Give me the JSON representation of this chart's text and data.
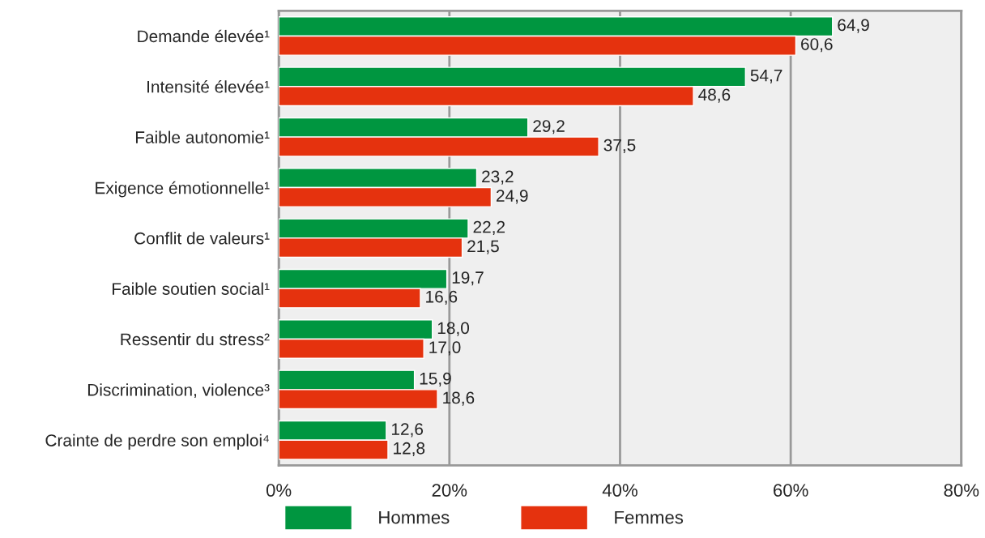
{
  "chart_data": {
    "type": "bar",
    "orientation": "horizontal",
    "categories": [
      "Demande élevée¹",
      "Intensité élevée¹",
      "Faible autonomie¹",
      "Exigence émotionnelle¹",
      "Conflit de valeurs¹",
      "Faible soutien social¹",
      "Ressentir du stress²",
      "Discrimination, violence³",
      "Crainte de perdre son emploi⁴"
    ],
    "series": [
      {
        "name": "Hommes",
        "color": "#009640",
        "values": [
          64.9,
          54.7,
          29.2,
          23.2,
          22.2,
          19.7,
          18.0,
          15.9,
          12.6
        ],
        "value_labels": [
          "64,9",
          "54,7",
          "29,2",
          "23,2",
          "22,2",
          "19,7",
          "18,0",
          "15,9",
          "12,6"
        ]
      },
      {
        "name": "Femmes",
        "color": "#e5320e",
        "values": [
          60.6,
          48.6,
          37.5,
          24.9,
          21.5,
          16.6,
          17.0,
          18.6,
          12.8
        ],
        "value_labels": [
          "60,6",
          "48,6",
          "37,5",
          "24,9",
          "21,5",
          "16,6",
          "17,0",
          "18,6",
          "12,8"
        ]
      }
    ],
    "xlim": [
      0,
      80
    ],
    "xticks": [
      {
        "value": 0,
        "label": "0%"
      },
      {
        "value": 20,
        "label": "20%"
      },
      {
        "value": 40,
        "label": "40%"
      },
      {
        "value": 60,
        "label": "60%"
      },
      {
        "value": 80,
        "label": "80%"
      }
    ],
    "grid": "x",
    "legend": "bottom"
  }
}
